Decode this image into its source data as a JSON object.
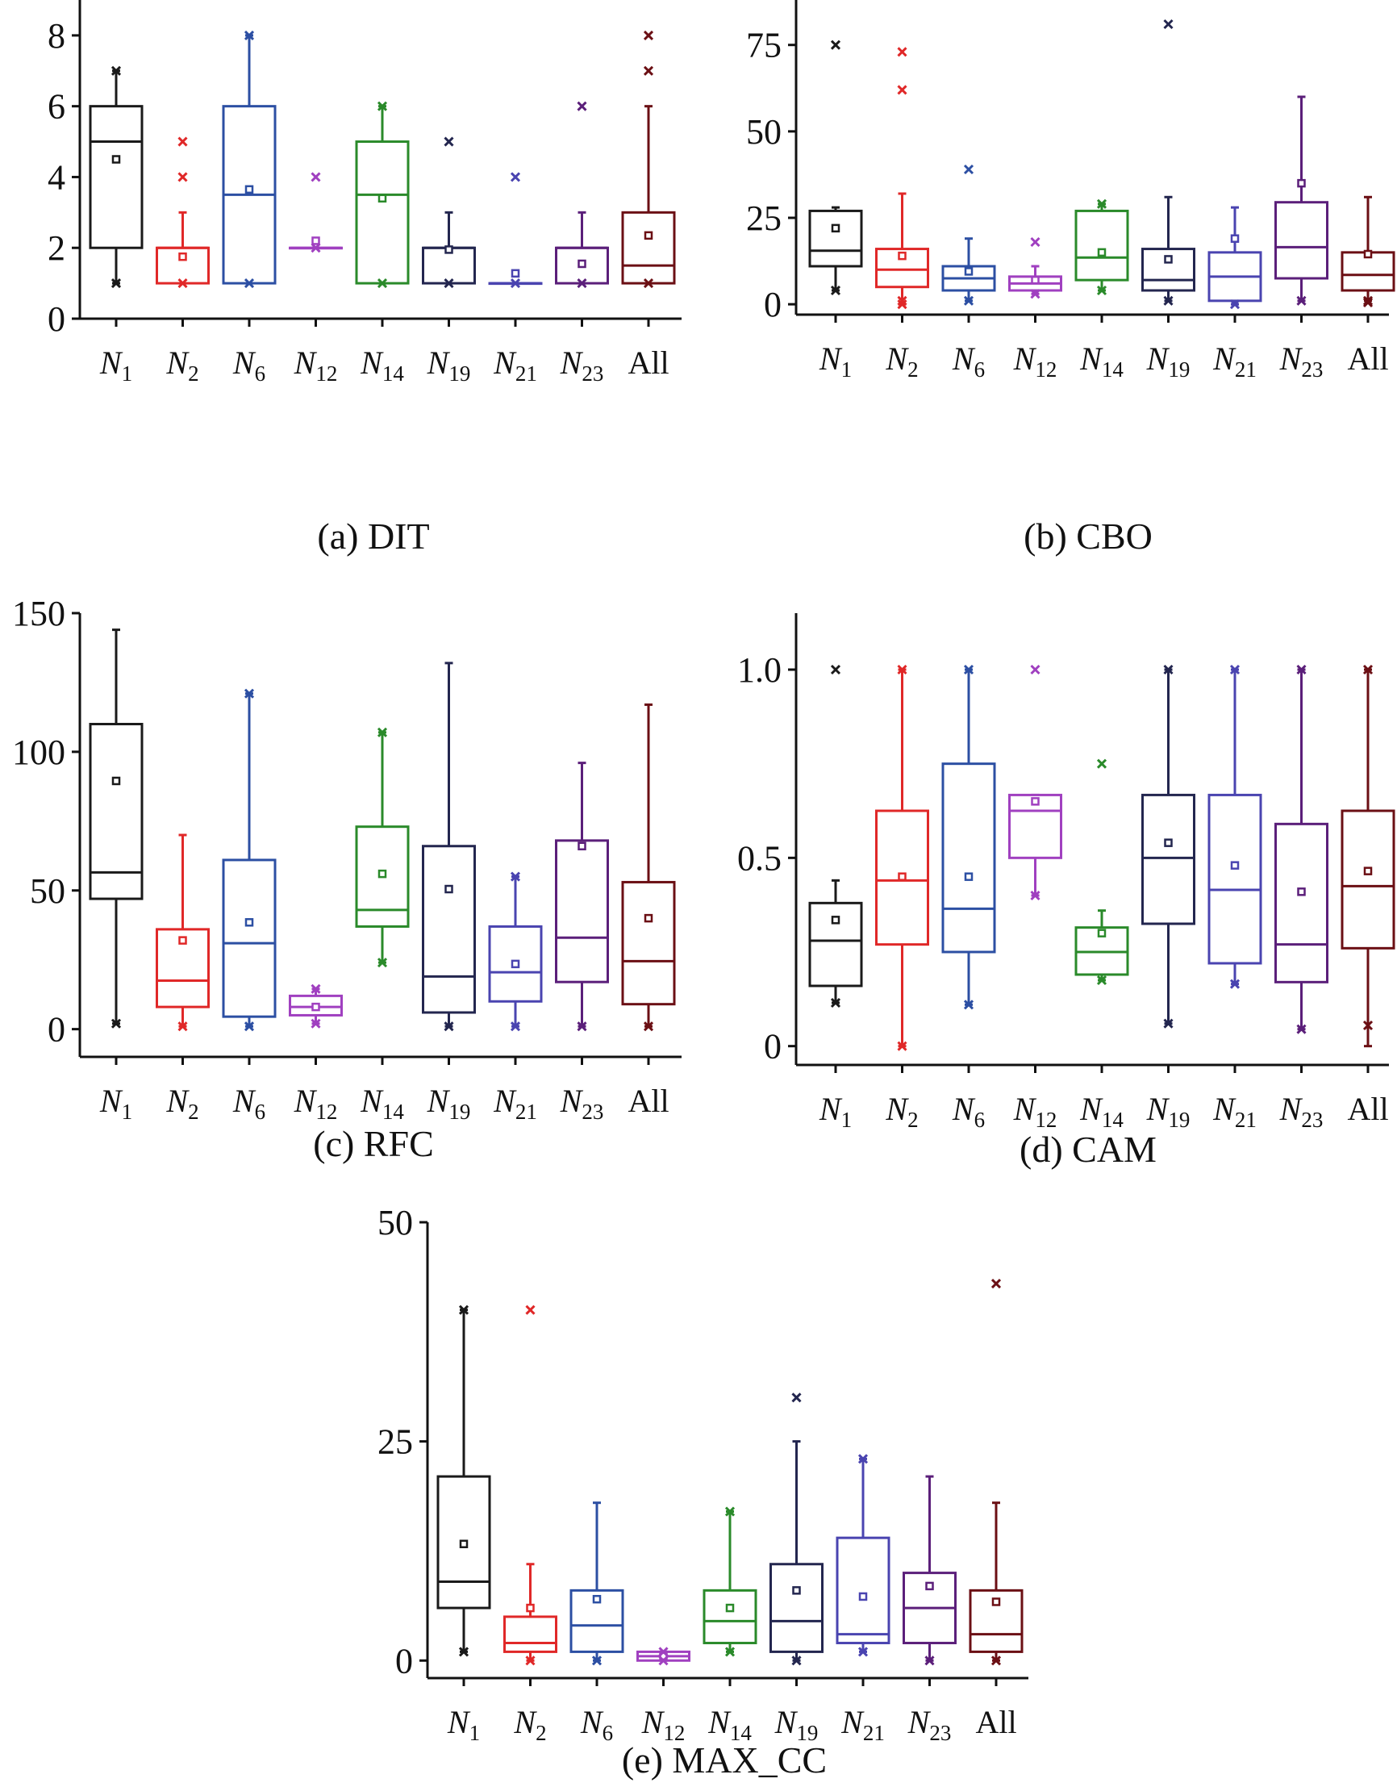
{
  "groups": [
    "N1",
    "N2",
    "N6",
    "N12",
    "N14",
    "N19",
    "N21",
    "N23",
    "All"
  ],
  "group_colors": [
    "#1a1a1a",
    "#e02828",
    "#2c4fa3",
    "#a040c0",
    "#2a8a2a",
    "#23264f",
    "#4a44b0",
    "#5b1f7a",
    "#6b0f14"
  ],
  "chart_data": [
    {
      "type": "box",
      "caption": "(a) DIT",
      "ylim": [
        0,
        9
      ],
      "yticks": [
        0,
        2,
        4,
        6,
        8
      ],
      "ytick_labels": [
        "0",
        "2",
        "4",
        "6",
        "8"
      ],
      "grid": false,
      "categories": [
        {
          "label": "N",
          "sub": "1",
          "whisker_low": 1,
          "q1": 2,
          "median": 5,
          "q3": 6,
          "whisker_high": 7,
          "mean": 4.5,
          "minmax": [
            1,
            7
          ],
          "outliers": []
        },
        {
          "label": "N",
          "sub": "2",
          "whisker_low": 1,
          "q1": 1,
          "median": 2,
          "q3": 2,
          "whisker_high": 3,
          "mean": 1.75,
          "minmax": [
            1
          ],
          "outliers": [
            4,
            5
          ]
        },
        {
          "label": "N",
          "sub": "6",
          "whisker_low": 1,
          "q1": 1,
          "median": 3.5,
          "q3": 6,
          "whisker_high": 8,
          "mean": 3.65,
          "minmax": [
            1,
            8
          ],
          "outliers": []
        },
        {
          "label": "N",
          "sub": "12",
          "whisker_low": 2,
          "q1": 2,
          "median": 2,
          "q3": 2,
          "whisker_high": 2,
          "mean": 2.2,
          "minmax": [
            2,
            4
          ],
          "outliers": []
        },
        {
          "label": "N",
          "sub": "14",
          "whisker_low": 1,
          "q1": 1,
          "median": 3.5,
          "q3": 5,
          "whisker_high": 6,
          "mean": 3.4,
          "minmax": [
            1,
            6
          ],
          "outliers": []
        },
        {
          "label": "N",
          "sub": "19",
          "whisker_low": 1,
          "q1": 1,
          "median": 2,
          "q3": 2,
          "whisker_high": 3,
          "mean": 1.95,
          "minmax": [
            1,
            5
          ],
          "outliers": []
        },
        {
          "label": "N",
          "sub": "21",
          "whisker_low": 1,
          "q1": 1,
          "median": 1,
          "q3": 1,
          "whisker_high": 1,
          "mean": 1.28,
          "minmax": [
            1,
            4
          ],
          "outliers": []
        },
        {
          "label": "N",
          "sub": "23",
          "whisker_low": 1,
          "q1": 1,
          "median": 2,
          "q3": 2,
          "whisker_high": 3,
          "mean": 1.55,
          "minmax": [
            1,
            6
          ],
          "outliers": []
        },
        {
          "label": "All",
          "sub": "",
          "whisker_low": 1,
          "q1": 1,
          "median": 1.5,
          "q3": 3,
          "whisker_high": 6,
          "mean": 2.35,
          "minmax": [
            1,
            7
          ],
          "outliers": [
            8
          ]
        }
      ]
    },
    {
      "type": "box",
      "caption": "(b) CBO",
      "ylim": [
        -3,
        88
      ],
      "yticks": [
        0,
        25,
        50,
        75
      ],
      "ytick_labels": [
        "0",
        "25",
        "50",
        "75"
      ],
      "grid": false,
      "categories": [
        {
          "label": "N",
          "sub": "1",
          "whisker_low": 4,
          "q1": 11,
          "median": 15.5,
          "q3": 27,
          "whisker_high": 28,
          "mean": 22,
          "minmax": [
            4,
            75
          ],
          "outliers": []
        },
        {
          "label": "N",
          "sub": "2",
          "whisker_low": 0,
          "q1": 5,
          "median": 10,
          "q3": 16,
          "whisker_high": 32,
          "mean": 14,
          "minmax": [
            0,
            1
          ],
          "outliers": [
            62,
            73
          ]
        },
        {
          "label": "N",
          "sub": "6",
          "whisker_low": 1,
          "q1": 4,
          "median": 7.5,
          "q3": 11,
          "whisker_high": 19,
          "mean": 9.5,
          "minmax": [
            1,
            39
          ],
          "outliers": []
        },
        {
          "label": "N",
          "sub": "12",
          "whisker_low": 3,
          "q1": 4,
          "median": 6,
          "q3": 8,
          "whisker_high": 11,
          "mean": 7,
          "minmax": [
            3,
            18
          ],
          "outliers": []
        },
        {
          "label": "N",
          "sub": "14",
          "whisker_low": 4,
          "q1": 7,
          "median": 13.5,
          "q3": 27,
          "whisker_high": 29,
          "mean": 15,
          "minmax": [
            4,
            29
          ],
          "outliers": []
        },
        {
          "label": "N",
          "sub": "19",
          "whisker_low": 1,
          "q1": 4,
          "median": 7,
          "q3": 16,
          "whisker_high": 31,
          "mean": 13,
          "minmax": [
            1,
            81
          ],
          "outliers": []
        },
        {
          "label": "N",
          "sub": "21",
          "whisker_low": 0,
          "q1": 1,
          "median": 8,
          "q3": 15,
          "whisker_high": 28,
          "mean": 19,
          "minmax": [
            0
          ],
          "outliers": []
        },
        {
          "label": "N",
          "sub": "23",
          "whisker_low": 1,
          "q1": 7.5,
          "median": 16.5,
          "q3": 29.5,
          "whisker_high": 60,
          "mean": 35,
          "minmax": [
            1
          ],
          "outliers": []
        },
        {
          "label": "All",
          "sub": "",
          "whisker_low": 1,
          "q1": 4,
          "median": 8.5,
          "q3": 15,
          "whisker_high": 31,
          "mean": 14.5,
          "minmax": [
            1,
            0.5
          ],
          "outliers": []
        }
      ]
    },
    {
      "type": "box",
      "caption": "(c) RFC",
      "ylim": [
        -10,
        150
      ],
      "yticks": [
        0,
        50,
        100,
        150
      ],
      "ytick_labels": [
        "0",
        "50",
        "100",
        "150"
      ],
      "grid": false,
      "categories": [
        {
          "label": "N",
          "sub": "1",
          "whisker_low": 2,
          "q1": 47,
          "median": 56.5,
          "q3": 110,
          "whisker_high": 144,
          "mean": 89.5,
          "minmax": [
            2
          ],
          "outliers": []
        },
        {
          "label": "N",
          "sub": "2",
          "whisker_low": 1,
          "q1": 8,
          "median": 17.5,
          "q3": 36,
          "whisker_high": 70,
          "mean": 32,
          "minmax": [
            1
          ],
          "outliers": []
        },
        {
          "label": "N",
          "sub": "6",
          "whisker_low": 1,
          "q1": 4.5,
          "median": 31,
          "q3": 61,
          "whisker_high": 121,
          "mean": 38.5,
          "minmax": [
            1,
            121
          ],
          "outliers": []
        },
        {
          "label": "N",
          "sub": "12",
          "whisker_low": 2,
          "q1": 5,
          "median": 8,
          "q3": 12,
          "whisker_high": 14.5,
          "mean": 8,
          "minmax": [
            2,
            14.5
          ],
          "outliers": []
        },
        {
          "label": "N",
          "sub": "14",
          "whisker_low": 24,
          "q1": 37,
          "median": 43,
          "q3": 73,
          "whisker_high": 107,
          "mean": 56,
          "minmax": [
            24,
            107
          ],
          "outliers": []
        },
        {
          "label": "N",
          "sub": "19",
          "whisker_low": 1,
          "q1": 6,
          "median": 19,
          "q3": 66,
          "whisker_high": 132,
          "mean": 50.5,
          "minmax": [
            1
          ],
          "outliers": []
        },
        {
          "label": "N",
          "sub": "21",
          "whisker_low": 1,
          "q1": 10,
          "median": 20.5,
          "q3": 37,
          "whisker_high": 55,
          "mean": 23.5,
          "minmax": [
            1,
            55
          ],
          "outliers": []
        },
        {
          "label": "N",
          "sub": "23",
          "whisker_low": 1,
          "q1": 17,
          "median": 33,
          "q3": 68,
          "whisker_high": 96,
          "mean": 66,
          "minmax": [
            1
          ],
          "outliers": []
        },
        {
          "label": "All",
          "sub": "",
          "whisker_low": 1,
          "q1": 9,
          "median": 24.5,
          "q3": 53,
          "whisker_high": 117,
          "mean": 40,
          "minmax": [
            1
          ],
          "outliers": []
        }
      ]
    },
    {
      "type": "box",
      "caption": "(d) CAM",
      "ylim": [
        -0.05,
        1.15
      ],
      "yticks": [
        0,
        0.5,
        1.0
      ],
      "ytick_labels": [
        "0",
        "0.5",
        "1.0"
      ],
      "grid": false,
      "categories": [
        {
          "label": "N",
          "sub": "1",
          "whisker_low": 0.115,
          "q1": 0.16,
          "median": 0.28,
          "q3": 0.38,
          "whisker_high": 0.44,
          "mean": 0.335,
          "minmax": [
            0.115,
            1.0
          ],
          "outliers": []
        },
        {
          "label": "N",
          "sub": "2",
          "whisker_low": 0,
          "q1": 0.27,
          "median": 0.44,
          "q3": 0.625,
          "whisker_high": 1.0,
          "mean": 0.45,
          "minmax": [
            0,
            1.0
          ],
          "outliers": []
        },
        {
          "label": "N",
          "sub": "6",
          "whisker_low": 0.11,
          "q1": 0.25,
          "median": 0.365,
          "q3": 0.75,
          "whisker_high": 1.0,
          "mean": 0.45,
          "minmax": [
            0.11,
            1.0
          ],
          "outliers": []
        },
        {
          "label": "N",
          "sub": "12",
          "whisker_low": 0.4,
          "q1": 0.5,
          "median": 0.625,
          "q3": 0.667,
          "whisker_high": 0.667,
          "mean": 0.65,
          "minmax": [
            0.4,
            1.0
          ],
          "outliers": []
        },
        {
          "label": "N",
          "sub": "14",
          "whisker_low": 0.175,
          "q1": 0.19,
          "median": 0.25,
          "q3": 0.315,
          "whisker_high": 0.36,
          "mean": 0.3,
          "minmax": [
            0.175,
            0.75
          ],
          "outliers": []
        },
        {
          "label": "N",
          "sub": "19",
          "whisker_low": 0.06,
          "q1": 0.325,
          "median": 0.5,
          "q3": 0.667,
          "whisker_high": 1.0,
          "mean": 0.54,
          "minmax": [
            0.06,
            1.0
          ],
          "outliers": []
        },
        {
          "label": "N",
          "sub": "21",
          "whisker_low": 0.165,
          "q1": 0.22,
          "median": 0.415,
          "q3": 0.667,
          "whisker_high": 1.0,
          "mean": 0.48,
          "minmax": [
            0.165,
            1.0
          ],
          "outliers": []
        },
        {
          "label": "N",
          "sub": "23",
          "whisker_low": 0.045,
          "q1": 0.17,
          "median": 0.27,
          "q3": 0.59,
          "whisker_high": 1.0,
          "mean": 0.41,
          "minmax": [
            0.045,
            1.0
          ],
          "outliers": []
        },
        {
          "label": "All",
          "sub": "",
          "whisker_low": 0,
          "q1": 0.26,
          "median": 0.425,
          "q3": 0.625,
          "whisker_high": 1.0,
          "mean": 0.465,
          "minmax": [
            0.055,
            1.0
          ],
          "outliers": []
        }
      ]
    },
    {
      "type": "box",
      "caption": "(e) MAX_CC",
      "ylim": [
        -2,
        50
      ],
      "yticks": [
        0,
        25,
        50
      ],
      "ytick_labels": [
        "0",
        "25",
        "50"
      ],
      "grid": false,
      "categories": [
        {
          "label": "N",
          "sub": "1",
          "whisker_low": 1,
          "q1": 6,
          "median": 9,
          "q3": 21,
          "whisker_high": 40,
          "mean": 13.3,
          "minmax": [
            1,
            40
          ],
          "outliers": []
        },
        {
          "label": "N",
          "sub": "2",
          "whisker_low": 0,
          "q1": 1,
          "median": 2,
          "q3": 5,
          "whisker_high": 11,
          "mean": 6,
          "minmax": [
            0
          ],
          "outliers": [
            40
          ]
        },
        {
          "label": "N",
          "sub": "6",
          "whisker_low": 0,
          "q1": 1,
          "median": 4,
          "q3": 8,
          "whisker_high": 18,
          "mean": 7,
          "minmax": [
            0
          ],
          "outliers": []
        },
        {
          "label": "N",
          "sub": "12",
          "whisker_low": 0,
          "q1": 0,
          "median": 0.5,
          "q3": 1,
          "whisker_high": 1,
          "mean": 0.5,
          "minmax": [
            0,
            1
          ],
          "outliers": []
        },
        {
          "label": "N",
          "sub": "14",
          "whisker_low": 1,
          "q1": 2,
          "median": 4.5,
          "q3": 8,
          "whisker_high": 17,
          "mean": 6,
          "minmax": [
            1,
            17
          ],
          "outliers": []
        },
        {
          "label": "N",
          "sub": "19",
          "whisker_low": 0,
          "q1": 1,
          "median": 4.5,
          "q3": 11,
          "whisker_high": 25,
          "mean": 8,
          "minmax": [
            0,
            30
          ],
          "outliers": []
        },
        {
          "label": "N",
          "sub": "21",
          "whisker_low": 1,
          "q1": 2,
          "median": 3,
          "q3": 14,
          "whisker_high": 23,
          "mean": 7.3,
          "minmax": [
            1,
            23
          ],
          "outliers": []
        },
        {
          "label": "N",
          "sub": "23",
          "whisker_low": 0,
          "q1": 2,
          "median": 6,
          "q3": 10,
          "whisker_high": 21,
          "mean": 8.5,
          "minmax": [
            0
          ],
          "outliers": []
        },
        {
          "label": "All",
          "sub": "",
          "whisker_low": 0,
          "q1": 1,
          "median": 3,
          "q3": 8,
          "whisker_high": 18,
          "mean": 6.7,
          "minmax": [
            0
          ],
          "outliers": [
            43
          ]
        }
      ]
    }
  ]
}
